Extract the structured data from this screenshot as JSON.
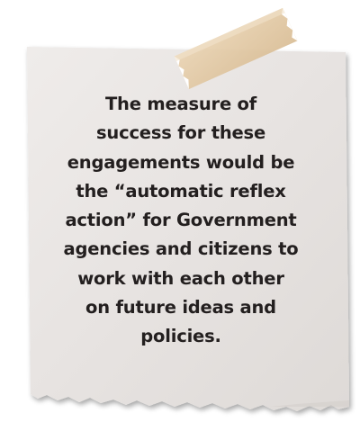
{
  "note": {
    "lines": [
      "The measure of",
      "success for these",
      "engagements would be",
      "the “automatic reflex",
      "action” for Government",
      "agencies and citizens to",
      "work with each other",
      "on future ideas and",
      "policies."
    ],
    "text_color": "#231f1f",
    "paper_color": "#e9e5e3",
    "tape_color": "#e2c9a6"
  }
}
